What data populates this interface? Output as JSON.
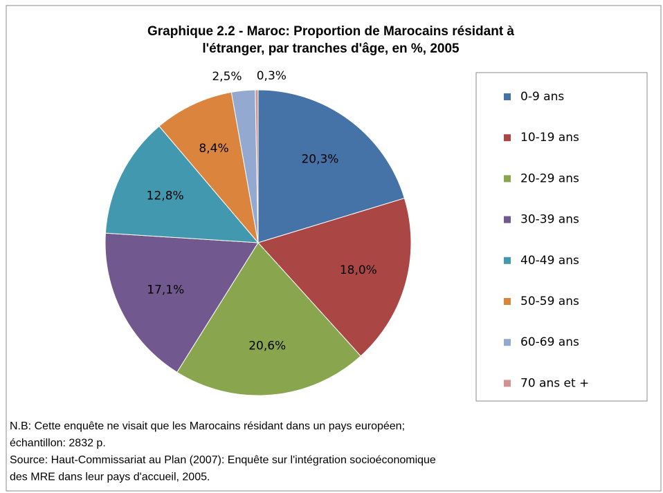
{
  "chart_data": {
    "type": "pie",
    "title": [
      "Graphique 2.2 - Maroc: Proportion de Marocains résidant à",
      "l'étranger, par tranches d'âge, en %, 2005"
    ],
    "categories": [
      "0-9 ans",
      "10-19 ans",
      "20-29 ans",
      "30-39 ans",
      "40-49 ans",
      "50-59 ans",
      "60-69 ans",
      "70 ans et +"
    ],
    "values": [
      20.3,
      18.0,
      20.6,
      17.1,
      12.8,
      8.4,
      2.5,
      0.3
    ],
    "value_labels": [
      "20,3%",
      "18,0%",
      "20,6%",
      "17,1%",
      "12,8%",
      "8,4%",
      "2,5%",
      "0,3%"
    ],
    "colors": [
      "#4572a7",
      "#aa4643",
      "#89a54e",
      "#71588f",
      "#4198af",
      "#db843d",
      "#93a9cf",
      "#d19392"
    ],
    "legend": "right",
    "notes": [
      "N.B: Cette enquête ne visait que les Marocains résidant dans un pays européen;",
      "échantillon: 2832 p.",
      "Source: Haut-Commissariat au Plan (2007): Enquête sur l'intégration socioéconomique",
      "des MRE dans leur pays d'accueil, 2005."
    ]
  }
}
